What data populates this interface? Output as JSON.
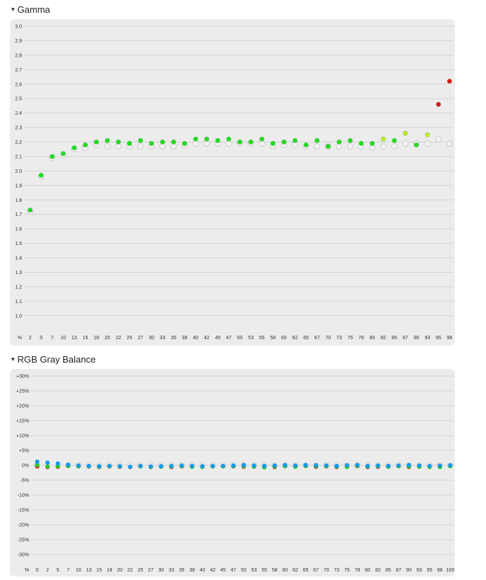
{
  "sections": {
    "gamma": {
      "title": "Gamma",
      "caret": "▾"
    },
    "rgb": {
      "title": "RGB Gray Balance",
      "caret": "▾"
    }
  },
  "colors": {
    "ok": "#22dd22",
    "warn": "#bbee22",
    "bad": "#dd1111",
    "reference_fill": "#f2f2f2",
    "reference_stroke": "#cccccc",
    "red": "#dd2222",
    "green": "#22cc22",
    "blue": "#1199ee",
    "panel_bg": "#ececec",
    "grid": "#d4d4d4"
  },
  "chart_data": [
    {
      "id": "gamma",
      "type": "scatter",
      "title": "Gamma",
      "xlabel": "%",
      "ylabel": "",
      "ylim": [
        0.95,
        3.0
      ],
      "yticks": [
        "1.0",
        "1.1",
        "1.2",
        "1.3",
        "1.4",
        "1.5",
        "1.6",
        "1.7",
        "1.8",
        "1.9",
        "2.0",
        "2.1",
        "2.2",
        "2.3",
        "2.4",
        "2.5",
        "2.6",
        "2.7",
        "2.8",
        "2.9",
        "3.0"
      ],
      "categories": [
        "2",
        "5",
        "7",
        "10",
        "13",
        "15",
        "18",
        "20",
        "22",
        "25",
        "27",
        "30",
        "33",
        "35",
        "38",
        "40",
        "42",
        "45",
        "47",
        "50",
        "53",
        "55",
        "58",
        "60",
        "62",
        "65",
        "67",
        "70",
        "73",
        "75",
        "78",
        "80",
        "82",
        "85",
        "87",
        "90",
        "93",
        "95",
        "98"
      ],
      "series": [
        {
          "role": "reference",
          "values": [
            1.72,
            1.96,
            2.09,
            2.11,
            2.15,
            2.16,
            2.18,
            2.17,
            2.17,
            2.17,
            2.17,
            2.17,
            2.17,
            2.17,
            2.18,
            2.19,
            2.19,
            2.19,
            2.19,
            2.19,
            2.19,
            2.19,
            2.17,
            2.18,
            2.18,
            2.17,
            2.17,
            2.17,
            2.17,
            2.17,
            2.17,
            2.16,
            2.17,
            2.17,
            2.19,
            2.19,
            2.19,
            2.22,
            2.19
          ]
        },
        {
          "role": "measured",
          "values": [
            1.73,
            1.97,
            2.1,
            2.12,
            2.16,
            2.18,
            2.2,
            2.21,
            2.2,
            2.19,
            2.21,
            2.19,
            2.2,
            2.2,
            2.19,
            2.22,
            2.22,
            2.21,
            2.22,
            2.2,
            2.2,
            2.22,
            2.19,
            2.2,
            2.21,
            2.18,
            2.21,
            2.17,
            2.2,
            2.21,
            2.19,
            2.19,
            2.22,
            2.21,
            2.26,
            2.18,
            2.25,
            2.46,
            2.62
          ],
          "status": [
            "ok",
            "ok",
            "ok",
            "ok",
            "ok",
            "ok",
            "ok",
            "ok",
            "ok",
            "ok",
            "ok",
            "ok",
            "ok",
            "ok",
            "ok",
            "ok",
            "ok",
            "ok",
            "ok",
            "ok",
            "ok",
            "ok",
            "ok",
            "ok",
            "ok",
            "ok",
            "ok",
            "ok",
            "ok",
            "ok",
            "ok",
            "ok",
            "warn",
            "ok",
            "warn",
            "ok",
            "warn",
            "bad",
            "bad"
          ]
        }
      ],
      "grid": true
    },
    {
      "id": "rgb",
      "type": "scatter",
      "title": "RGB Gray Balance",
      "xlabel": "%",
      "ylabel": "",
      "ylim": [
        -30,
        30
      ],
      "yticks": [
        "+30%",
        "+25%",
        "+20%",
        "+15%",
        "+10%",
        "+5%",
        "0%",
        "-5%",
        "-10%",
        "-15%",
        "-20%",
        "-25%",
        "-30%"
      ],
      "categories": [
        "0",
        "2",
        "5",
        "7",
        "10",
        "13",
        "15",
        "18",
        "20",
        "22",
        "25",
        "27",
        "30",
        "33",
        "35",
        "38",
        "40",
        "42",
        "45",
        "47",
        "50",
        "53",
        "55",
        "58",
        "60",
        "62",
        "65",
        "67",
        "70",
        "73",
        "75",
        "78",
        "80",
        "82",
        "85",
        "87",
        "90",
        "93",
        "95",
        "98",
        "100"
      ],
      "series": [
        {
          "role": "reference",
          "values": [
            0,
            0,
            0,
            0,
            0,
            0,
            0,
            0,
            0,
            0,
            0,
            0,
            0,
            0,
            0,
            0,
            0,
            0,
            0,
            0,
            0,
            0,
            0,
            0,
            0,
            0,
            0,
            0,
            0,
            0,
            0,
            0,
            0,
            0,
            0,
            0,
            0,
            0,
            0,
            0,
            0
          ]
        },
        {
          "name": "R",
          "values": [
            -0.4,
            -0.6,
            -0.5,
            -0.2,
            -0.3,
            -0.4,
            -0.6,
            -0.4,
            -0.5,
            -0.6,
            -0.3,
            -0.5,
            -0.4,
            -0.6,
            -0.4,
            -0.3,
            -0.5,
            -0.4,
            -0.3,
            -0.4,
            -0.5,
            -0.4,
            -0.5,
            -0.6,
            -0.3,
            -0.4,
            -0.2,
            -0.5,
            -0.4,
            -0.6,
            -0.4,
            -0.3,
            -0.6,
            -0.5,
            -0.4,
            -0.3,
            -0.6,
            -0.5,
            -0.4,
            -0.3,
            -0.2
          ]
        },
        {
          "name": "G",
          "values": [
            0.1,
            -0.4,
            -0.3,
            -0.2,
            -0.4,
            -0.3,
            -0.5,
            -0.3,
            -0.4,
            -0.5,
            -0.4,
            -0.6,
            -0.5,
            -0.4,
            -0.3,
            -0.5,
            -0.6,
            -0.4,
            -0.4,
            -0.3,
            -0.3,
            -0.5,
            -0.7,
            -0.4,
            -0.3,
            -0.5,
            -0.2,
            -0.3,
            -0.3,
            -0.4,
            -0.6,
            -0.2,
            -0.4,
            -0.3,
            -0.5,
            -0.3,
            -0.4,
            -0.5,
            -0.6,
            -0.6,
            -0.3
          ]
        },
        {
          "name": "B",
          "values": [
            1.2,
            0.9,
            0.6,
            0.2,
            -0.1,
            -0.2,
            -0.3,
            -0.2,
            -0.3,
            -0.5,
            -0.2,
            -0.4,
            -0.3,
            -0.2,
            -0.1,
            -0.2,
            -0.3,
            -0.2,
            -0.2,
            -0.1,
            0.1,
            -0.1,
            -0.2,
            -0.1,
            0.1,
            -0.1,
            0.1,
            0.0,
            -0.1,
            -0.2,
            0.0,
            0.1,
            -0.2,
            -0.1,
            -0.2,
            -0.1,
            0.1,
            -0.1,
            -0.2,
            -0.1,
            0.0
          ]
        }
      ],
      "grid": true
    }
  ]
}
